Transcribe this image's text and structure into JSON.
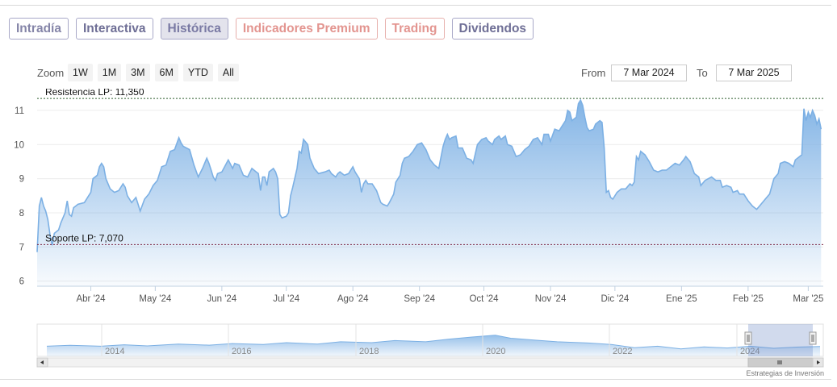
{
  "tabs": [
    {
      "label": "Intradía",
      "style": "normal"
    },
    {
      "label": "Interactiva",
      "style": "dark"
    },
    {
      "label": "Histórica",
      "style": "active"
    },
    {
      "label": "Indicadores Premium",
      "style": "premium"
    },
    {
      "label": "Trading",
      "style": "premium"
    },
    {
      "label": "Dividendos",
      "style": "dark"
    }
  ],
  "zoom": {
    "label": "Zoom",
    "options": [
      "1W",
      "1M",
      "3M",
      "6M",
      "YTD",
      "All"
    ]
  },
  "range": {
    "from_label": "From",
    "from_value": "7 Mar 2024",
    "to_label": "To",
    "to_value": "7 Mar 2025"
  },
  "chart_data": {
    "type": "area",
    "title": "",
    "xlabel": "",
    "ylabel": "",
    "ylim": [
      5.85,
      11.4
    ],
    "yticks": [
      6,
      7,
      8,
      9,
      10,
      11
    ],
    "xlim": [
      "2024-03-07",
      "2025-03-08"
    ],
    "xticks": [
      {
        "label": "Abr '24",
        "date": "2024-04-01"
      },
      {
        "label": "May '24",
        "date": "2024-05-01"
      },
      {
        "label": "Jun '24",
        "date": "2024-06-01"
      },
      {
        "label": "Jul '24",
        "date": "2024-07-01"
      },
      {
        "label": "Ago '24",
        "date": "2024-08-01"
      },
      {
        "label": "Sep '24",
        "date": "2024-09-01"
      },
      {
        "label": "Oct '24",
        "date": "2024-10-01"
      },
      {
        "label": "Nov '24",
        "date": "2024-11-01"
      },
      {
        "label": "Dic '24",
        "date": "2024-12-01"
      },
      {
        "label": "Ene '25",
        "date": "2025-01-01"
      },
      {
        "label": "Feb '25",
        "date": "2025-02-01"
      },
      {
        "label": "Mar '25",
        "date": "2025-03-01"
      }
    ],
    "series": [
      {
        "color": "#7cb0e4",
        "points": [
          [
            "2024-03-07",
            6.85
          ],
          [
            "2024-03-08",
            8.2
          ],
          [
            "2024-03-09",
            8.45
          ],
          [
            "2024-03-10",
            8.2
          ],
          [
            "2024-03-11",
            8.05
          ],
          [
            "2024-03-12",
            7.8
          ],
          [
            "2024-03-13",
            7.35
          ],
          [
            "2024-03-14",
            7.05
          ],
          [
            "2024-03-15",
            7.4
          ],
          [
            "2024-03-17",
            7.5
          ],
          [
            "2024-03-18",
            7.7
          ],
          [
            "2024-03-20",
            8.0
          ],
          [
            "2024-03-21",
            8.35
          ],
          [
            "2024-03-22",
            7.95
          ],
          [
            "2024-03-23",
            7.9
          ],
          [
            "2024-03-24",
            8.15
          ],
          [
            "2024-03-26",
            8.25
          ],
          [
            "2024-03-29",
            8.3
          ],
          [
            "2024-04-01",
            8.6
          ],
          [
            "2024-04-02",
            9.0
          ],
          [
            "2024-04-04",
            9.1
          ],
          [
            "2024-04-05",
            9.35
          ],
          [
            "2024-04-06",
            9.45
          ],
          [
            "2024-04-07",
            9.35
          ],
          [
            "2024-04-08",
            9.0
          ],
          [
            "2024-04-10",
            8.7
          ],
          [
            "2024-04-12",
            8.6
          ],
          [
            "2024-04-14",
            8.65
          ],
          [
            "2024-04-16",
            8.85
          ],
          [
            "2024-04-17",
            8.75
          ],
          [
            "2024-04-18",
            8.5
          ],
          [
            "2024-04-20",
            8.3
          ],
          [
            "2024-04-22",
            8.45
          ],
          [
            "2024-04-23",
            8.25
          ],
          [
            "2024-04-24",
            8.05
          ],
          [
            "2024-04-26",
            8.4
          ],
          [
            "2024-04-28",
            8.55
          ],
          [
            "2024-04-30",
            8.8
          ],
          [
            "2024-05-02",
            8.95
          ],
          [
            "2024-05-04",
            9.35
          ],
          [
            "2024-05-06",
            9.4
          ],
          [
            "2024-05-08",
            9.8
          ],
          [
            "2024-05-10",
            9.85
          ],
          [
            "2024-05-12",
            10.2
          ],
          [
            "2024-05-13",
            10.05
          ],
          [
            "2024-05-14",
            9.95
          ],
          [
            "2024-05-17",
            9.85
          ],
          [
            "2024-05-19",
            9.4
          ],
          [
            "2024-05-21",
            9.05
          ],
          [
            "2024-05-23",
            9.3
          ],
          [
            "2024-05-25",
            9.6
          ],
          [
            "2024-05-26",
            9.45
          ],
          [
            "2024-05-27",
            9.25
          ],
          [
            "2024-05-28",
            9.05
          ],
          [
            "2024-05-29",
            8.95
          ],
          [
            "2024-05-30",
            9.15
          ],
          [
            "2024-06-01",
            9.2
          ],
          [
            "2024-06-04",
            9.55
          ],
          [
            "2024-06-06",
            9.3
          ],
          [
            "2024-06-07",
            9.45
          ],
          [
            "2024-06-09",
            9.4
          ],
          [
            "2024-06-11",
            9.1
          ],
          [
            "2024-06-13",
            9.05
          ],
          [
            "2024-06-15",
            9.3
          ],
          [
            "2024-06-17",
            9.2
          ],
          [
            "2024-06-18",
            9.15
          ],
          [
            "2024-06-19",
            8.65
          ],
          [
            "2024-06-20",
            9.05
          ],
          [
            "2024-06-21",
            9.05
          ],
          [
            "2024-06-22",
            8.8
          ],
          [
            "2024-06-23",
            9.2
          ],
          [
            "2024-06-25",
            9.3
          ],
          [
            "2024-06-26",
            9.2
          ],
          [
            "2024-06-27",
            9.0
          ],
          [
            "2024-06-28",
            7.95
          ],
          [
            "2024-06-29",
            7.85
          ],
          [
            "2024-07-01",
            7.9
          ],
          [
            "2024-07-02",
            8.0
          ],
          [
            "2024-07-03",
            8.5
          ],
          [
            "2024-07-04",
            8.75
          ],
          [
            "2024-07-06",
            9.3
          ],
          [
            "2024-07-07",
            9.8
          ],
          [
            "2024-07-08",
            9.75
          ],
          [
            "2024-07-09",
            10.15
          ],
          [
            "2024-07-11",
            10.0
          ],
          [
            "2024-07-12",
            9.6
          ],
          [
            "2024-07-14",
            9.3
          ],
          [
            "2024-07-16",
            9.15
          ],
          [
            "2024-07-19",
            9.2
          ],
          [
            "2024-07-21",
            9.25
          ],
          [
            "2024-07-22",
            9.15
          ],
          [
            "2024-07-24",
            9.05
          ],
          [
            "2024-07-25",
            9.15
          ],
          [
            "2024-07-26",
            9.2
          ],
          [
            "2024-07-28",
            9.1
          ],
          [
            "2024-07-30",
            9.15
          ],
          [
            "2024-08-01",
            9.35
          ],
          [
            "2024-08-02",
            9.2
          ],
          [
            "2024-08-04",
            9.0
          ],
          [
            "2024-08-05",
            8.6
          ],
          [
            "2024-08-06",
            8.85
          ],
          [
            "2024-08-07",
            8.95
          ],
          [
            "2024-08-08",
            8.85
          ],
          [
            "2024-08-10",
            8.85
          ],
          [
            "2024-08-12",
            8.65
          ],
          [
            "2024-08-14",
            8.3
          ],
          [
            "2024-08-15",
            8.25
          ],
          [
            "2024-08-17",
            8.2
          ],
          [
            "2024-08-18",
            8.3
          ],
          [
            "2024-08-20",
            8.55
          ],
          [
            "2024-08-21",
            8.9
          ],
          [
            "2024-08-23",
            9.1
          ],
          [
            "2024-08-24",
            9.45
          ],
          [
            "2024-08-25",
            9.6
          ],
          [
            "2024-08-27",
            9.65
          ],
          [
            "2024-08-29",
            9.8
          ],
          [
            "2024-08-31",
            10.0
          ],
          [
            "2024-09-02",
            10.05
          ],
          [
            "2024-09-04",
            9.85
          ],
          [
            "2024-09-06",
            9.55
          ],
          [
            "2024-09-08",
            9.4
          ],
          [
            "2024-09-10",
            9.3
          ],
          [
            "2024-09-12",
            9.95
          ],
          [
            "2024-09-13",
            10.15
          ],
          [
            "2024-09-14",
            10.3
          ],
          [
            "2024-09-15",
            10.15
          ],
          [
            "2024-09-16",
            10.2
          ],
          [
            "2024-09-18",
            10.25
          ],
          [
            "2024-09-19",
            9.9
          ],
          [
            "2024-09-21",
            9.9
          ],
          [
            "2024-09-23",
            9.6
          ],
          [
            "2024-09-25",
            9.55
          ],
          [
            "2024-09-26",
            9.45
          ],
          [
            "2024-09-28",
            10.0
          ],
          [
            "2024-09-30",
            10.15
          ],
          [
            "2024-10-02",
            10.2
          ],
          [
            "2024-10-03",
            10.1
          ],
          [
            "2024-10-05",
            10.0
          ],
          [
            "2024-10-06",
            10.15
          ],
          [
            "2024-10-08",
            10.25
          ],
          [
            "2024-10-09",
            10.15
          ],
          [
            "2024-10-11",
            10.25
          ],
          [
            "2024-10-12",
            10.0
          ],
          [
            "2024-10-14",
            9.95
          ],
          [
            "2024-10-16",
            9.65
          ],
          [
            "2024-10-18",
            9.7
          ],
          [
            "2024-10-20",
            9.85
          ],
          [
            "2024-10-22",
            9.95
          ],
          [
            "2024-10-24",
            10.15
          ],
          [
            "2024-10-26",
            10.2
          ],
          [
            "2024-10-28",
            10.0
          ],
          [
            "2024-10-29",
            10.3
          ],
          [
            "2024-10-31",
            10.3
          ],
          [
            "2024-11-01",
            10.1
          ],
          [
            "2024-11-03",
            10.45
          ],
          [
            "2024-11-05",
            10.4
          ],
          [
            "2024-11-06",
            10.5
          ],
          [
            "2024-11-08",
            10.7
          ],
          [
            "2024-11-09",
            11.0
          ],
          [
            "2024-11-10",
            10.95
          ],
          [
            "2024-11-11",
            10.7
          ],
          [
            "2024-11-13",
            10.8
          ],
          [
            "2024-11-14",
            11.2
          ],
          [
            "2024-11-15",
            11.3
          ],
          [
            "2024-11-16",
            11.15
          ],
          [
            "2024-11-17",
            10.8
          ],
          [
            "2024-11-18",
            10.5
          ],
          [
            "2024-11-19",
            10.4
          ],
          [
            "2024-11-21",
            10.45
          ],
          [
            "2024-11-22",
            10.6
          ],
          [
            "2024-11-24",
            10.7
          ],
          [
            "2024-11-25",
            10.65
          ],
          [
            "2024-11-26",
            9.9
          ],
          [
            "2024-11-27",
            8.6
          ],
          [
            "2024-11-28",
            8.65
          ],
          [
            "2024-11-29",
            8.45
          ],
          [
            "2024-11-30",
            8.4
          ],
          [
            "2024-12-02",
            8.6
          ],
          [
            "2024-12-04",
            8.7
          ],
          [
            "2024-12-06",
            8.7
          ],
          [
            "2024-12-08",
            8.85
          ],
          [
            "2024-12-09",
            8.8
          ],
          [
            "2024-12-10",
            8.9
          ],
          [
            "2024-12-11",
            9.65
          ],
          [
            "2024-12-12",
            9.55
          ],
          [
            "2024-12-13",
            9.8
          ],
          [
            "2024-12-15",
            9.7
          ],
          [
            "2024-12-17",
            9.5
          ],
          [
            "2024-12-19",
            9.25
          ],
          [
            "2024-12-21",
            9.2
          ],
          [
            "2024-12-23",
            9.25
          ],
          [
            "2024-12-25",
            9.25
          ],
          [
            "2024-12-27",
            9.35
          ],
          [
            "2024-12-29",
            9.45
          ],
          [
            "2024-12-31",
            9.4
          ],
          [
            "2025-01-02",
            9.55
          ],
          [
            "2025-01-03",
            9.65
          ],
          [
            "2025-01-05",
            9.5
          ],
          [
            "2025-01-07",
            9.15
          ],
          [
            "2025-01-09",
            9.05
          ],
          [
            "2025-01-10",
            8.8
          ],
          [
            "2025-01-12",
            8.95
          ],
          [
            "2025-01-15",
            9.05
          ],
          [
            "2025-01-17",
            8.95
          ],
          [
            "2025-01-19",
            8.95
          ],
          [
            "2025-01-20",
            8.75
          ],
          [
            "2025-01-22",
            8.8
          ],
          [
            "2025-01-24",
            8.75
          ],
          [
            "2025-01-25",
            8.6
          ],
          [
            "2025-01-27",
            8.65
          ],
          [
            "2025-01-28",
            8.55
          ],
          [
            "2025-01-30",
            8.55
          ],
          [
            "2025-02-01",
            8.35
          ],
          [
            "2025-02-03",
            8.2
          ],
          [
            "2025-02-05",
            8.1
          ],
          [
            "2025-02-07",
            8.25
          ],
          [
            "2025-02-09",
            8.4
          ],
          [
            "2025-02-11",
            8.55
          ],
          [
            "2025-02-13",
            9.0
          ],
          [
            "2025-02-15",
            9.15
          ],
          [
            "2025-02-16",
            9.45
          ],
          [
            "2025-02-18",
            9.5
          ],
          [
            "2025-02-20",
            9.45
          ],
          [
            "2025-02-22",
            9.35
          ],
          [
            "2025-02-23",
            9.55
          ],
          [
            "2025-02-25",
            9.65
          ],
          [
            "2025-02-26",
            9.7
          ],
          [
            "2025-02-27",
            11.05
          ],
          [
            "2025-02-28",
            10.7
          ],
          [
            "2025-03-01",
            10.95
          ],
          [
            "2025-03-02",
            10.8
          ],
          [
            "2025-03-03",
            11.0
          ],
          [
            "2025-03-04",
            10.85
          ],
          [
            "2025-03-05",
            10.6
          ],
          [
            "2025-03-06",
            10.75
          ],
          [
            "2025-03-07",
            10.45
          ]
        ]
      }
    ],
    "plot_lines": [
      {
        "label": "Resistencia LP: 11,350",
        "value": 11.35,
        "color": "#2e5d2e"
      },
      {
        "label": "Soporte LP: 7,070",
        "value": 7.07,
        "color": "#7a1f3d"
      }
    ],
    "navigator": {
      "years": [
        "2014",
        "2016",
        "2018",
        "2020",
        "2022",
        "2024"
      ],
      "selection": "2024-2025"
    }
  },
  "icons": {
    "scroll_left": "chevron-left-icon",
    "scroll_right": "chevron-right-icon",
    "scroll_grip": "grip-icon"
  },
  "watermark": "Estrategias de Inversión"
}
